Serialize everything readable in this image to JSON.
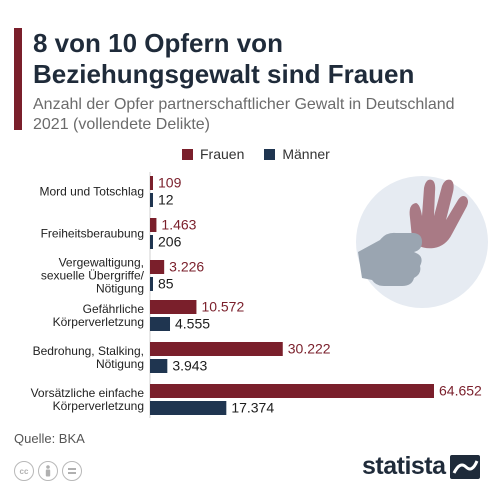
{
  "header": {
    "title": "8 von 10 Opfern von Beziehungsgewalt sind Frauen",
    "subtitle": "Anzahl der Opfer partnerschaftlicher Gewalt in Deutschland 2021 (vollendete Delikte)"
  },
  "colors": {
    "frauen": "#7a1f2b",
    "maenner": "#1f3550",
    "accent": "#7a1f2b",
    "illustration_bg": "#e6ebf2",
    "illustration_fist": "#9aa5b1",
    "illustration_hand": "#a97a85"
  },
  "legend": {
    "frauen": "Frauen",
    "maenner": "Männer"
  },
  "chart_data": {
    "type": "bar",
    "orientation": "horizontal",
    "title": "8 von 10 Opfern von Beziehungsgewalt sind Frauen",
    "subtitle": "Anzahl der Opfer partnerschaftlicher Gewalt in Deutschland 2021 (vollendete Delikte)",
    "categories": [
      [
        "Mord und Totschlag"
      ],
      [
        "Freiheitsberaubung"
      ],
      [
        "Vergewaltigung,",
        "sexuelle Übergriffe/",
        "Nötigung"
      ],
      [
        "Gefährliche",
        "Körperverletzung"
      ],
      [
        "Bedrohung, Stalking,",
        "Nötigung"
      ],
      [
        "Vorsätzliche einfache",
        "Körperverletzung"
      ]
    ],
    "series": [
      {
        "name": "Frauen",
        "values": [
          109,
          1463,
          3226,
          10572,
          30222,
          64652
        ],
        "labels": [
          "109",
          "1.463",
          "3.226",
          "10.572",
          "30.222",
          "64.652"
        ]
      },
      {
        "name": "Männer",
        "values": [
          12,
          206,
          85,
          4555,
          3943,
          17374
        ],
        "labels": [
          "12",
          "206",
          "85",
          "4.555",
          "3.943",
          "17.374"
        ]
      }
    ],
    "xlim": [
      0,
      64652
    ],
    "grid": false,
    "legend_position": "top"
  },
  "footer": {
    "source": "Quelle: BKA",
    "logo": "statista",
    "cc_icons": [
      "cc",
      "by",
      "="
    ]
  }
}
